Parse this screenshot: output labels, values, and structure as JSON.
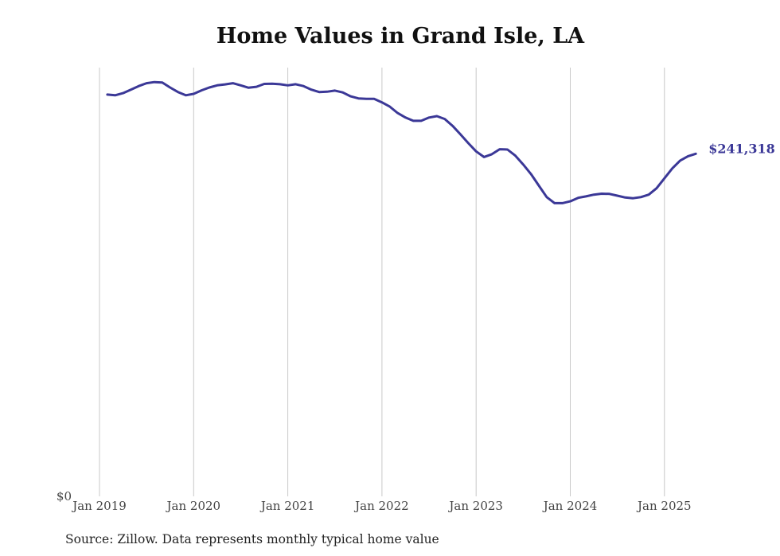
{
  "chart_data": {
    "type": "line",
    "title": "Home Values in Grand Isle, LA",
    "source_note": "Source: Zillow. Data represents monthly typical home value",
    "xlabel": "",
    "ylabel": "",
    "x_ticks": [
      "Jan 2019",
      "Jan 2020",
      "Jan 2021",
      "Jan 2022",
      "Jan 2023",
      "Jan 2024",
      "Jan 2025"
    ],
    "y_ticks": [
      "$0"
    ],
    "ylim": [
      0,
      302000
    ],
    "grid": "vertical at each January",
    "line_color": "#3b3897",
    "end_label": "$241,318",
    "series": [
      {
        "x": [
          "2019-02",
          "2019-03",
          "2019-04",
          "2019-05",
          "2019-06",
          "2019-07",
          "2019-08",
          "2019-09",
          "2019-10",
          "2019-11",
          "2019-12",
          "2020-01",
          "2020-02",
          "2020-03",
          "2020-04",
          "2020-05",
          "2020-06",
          "2020-07",
          "2020-08",
          "2020-09",
          "2020-10",
          "2020-11",
          "2020-12",
          "2021-01",
          "2021-02",
          "2021-03",
          "2021-04",
          "2021-05",
          "2021-06",
          "2021-07",
          "2021-08",
          "2021-09",
          "2021-10",
          "2021-11",
          "2021-12",
          "2022-01",
          "2022-02",
          "2022-03",
          "2022-04",
          "2022-05",
          "2022-06",
          "2022-07",
          "2022-08",
          "2022-09",
          "2022-10",
          "2022-11",
          "2022-12",
          "2023-01",
          "2023-02",
          "2023-03",
          "2023-04",
          "2023-05",
          "2023-06",
          "2023-07",
          "2023-08",
          "2023-09",
          "2023-10",
          "2023-11",
          "2023-12",
          "2024-01",
          "2024-02",
          "2024-03",
          "2024-04",
          "2024-05",
          "2024-06",
          "2024-07",
          "2024-08",
          "2024-09",
          "2024-10",
          "2024-11",
          "2024-12",
          "2025-01",
          "2025-02",
          "2025-03",
          "2025-04",
          "2025-05"
        ],
        "values": [
          283000,
          282500,
          284000,
          286500,
          289000,
          291000,
          291800,
          291500,
          288000,
          284800,
          282500,
          283500,
          286000,
          288000,
          289500,
          290200,
          291000,
          289500,
          287800,
          288500,
          290500,
          290700,
          290300,
          289500,
          290300,
          289000,
          286500,
          284800,
          285000,
          285800,
          284500,
          281800,
          280300,
          280000,
          280000,
          277500,
          274500,
          270000,
          266800,
          264500,
          264500,
          266800,
          267800,
          265800,
          261000,
          255000,
          248800,
          243000,
          239000,
          241000,
          244500,
          244300,
          240000,
          233800,
          227000,
          218800,
          210800,
          206500,
          206500,
          207800,
          210300,
          211300,
          212500,
          213200,
          213000,
          211800,
          210500,
          210000,
          210800,
          212500,
          217000,
          224000,
          231000,
          236500,
          239600,
          241318
        ]
      }
    ]
  }
}
